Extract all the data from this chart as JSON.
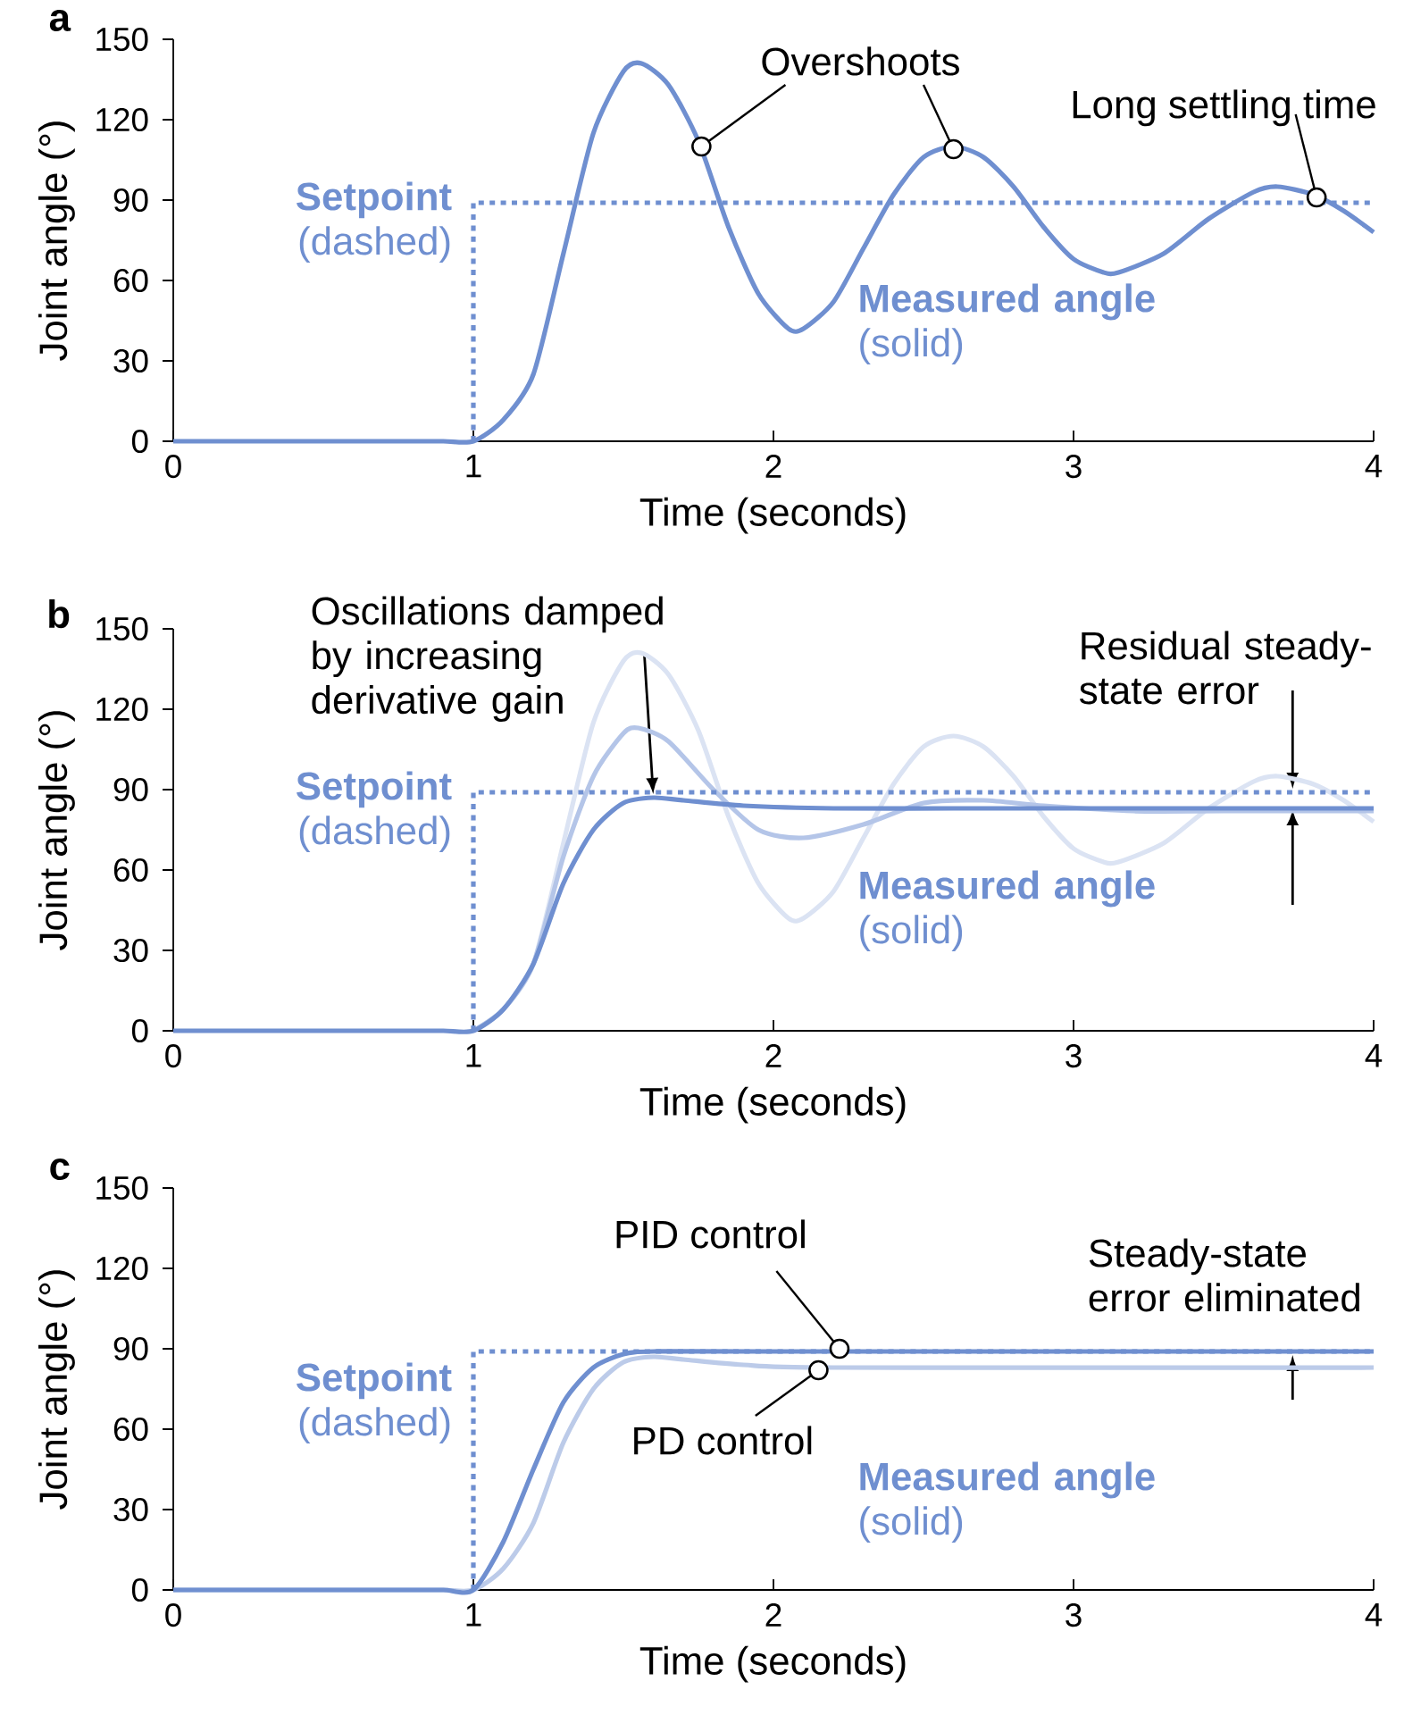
{
  "chart_data": [
    {
      "type": "line",
      "title": "a",
      "xlabel": "Time (seconds)",
      "ylabel": "Joint angle (°)",
      "xlim": [
        0,
        4
      ],
      "ylim": [
        0,
        150
      ],
      "xticks": [
        0,
        1,
        2,
        3,
        4
      ],
      "yticks": [
        0,
        30,
        60,
        90,
        120,
        150
      ],
      "series": [
        {
          "name": "**Measured angle** (solid)",
          "color": "#6f8fd0",
          "line_style": "solid",
          "x": [
            0,
            0.25,
            0.5,
            0.75,
            0.9,
            1,
            1.1,
            1.2,
            1.3,
            1.4,
            1.5,
            1.56,
            1.65,
            1.75,
            1.85,
            1.95,
            2.05,
            2.1,
            2.2,
            2.3,
            2.4,
            2.5,
            2.6,
            2.7,
            2.8,
            2.9,
            3.0,
            3.1,
            3.15,
            3.3,
            3.45,
            3.6,
            3.68,
            3.8,
            3.9,
            4.0
          ],
          "values": [
            0,
            0,
            0,
            0,
            0,
            0,
            8,
            25,
            70,
            115,
            138,
            141,
            133,
            112,
            80,
            55,
            42,
            42,
            52,
            72,
            92,
            106,
            110,
            106,
            95,
            80,
            68,
            63,
            63,
            70,
            83,
            93,
            95,
            92,
            86,
            78
          ]
        },
        {
          "name": "**Setpoint** (dashed)",
          "color": "#6f8fd0",
          "line_style": "dotted",
          "x": [
            1,
            1,
            4
          ],
          "values": [
            0,
            89,
            89
          ]
        },
        {
          "type": "scatter",
          "marker": "circle",
          "color": "#000000",
          "x": [
            1.76,
            2.6,
            3.81
          ],
          "values": [
            110,
            109,
            91
          ]
        }
      ],
      "annotations": [
        {
          "text": "Overshoots",
          "x": 1.76,
          "y": 110
        },
        {
          "text": "Long settling time",
          "x": 3.81,
          "y": 91
        }
      ]
    },
    {
      "type": "line",
      "title": "b",
      "xlabel": "Time (seconds)",
      "ylabel": "Joint angle (°)",
      "xlim": [
        0,
        4
      ],
      "ylim": [
        0,
        150
      ],
      "xticks": [
        0,
        1,
        2,
        3,
        4
      ],
      "yticks": [
        0,
        30,
        60,
        90,
        120,
        150
      ],
      "series": [
        {
          "color": "#dbe3f3",
          "line_style": "solid",
          "x": [
            1,
            1.1,
            1.2,
            1.3,
            1.4,
            1.5,
            1.56,
            1.65,
            1.75,
            1.85,
            1.95,
            2.05,
            2.1,
            2.2,
            2.3,
            2.4,
            2.5,
            2.6,
            2.7,
            2.8,
            2.9,
            3.0,
            3.1,
            3.15,
            3.3,
            3.45,
            3.6,
            3.68,
            3.8,
            3.9,
            4.0
          ],
          "values": [
            0,
            8,
            25,
            70,
            115,
            138,
            141,
            133,
            112,
            80,
            55,
            42,
            42,
            52,
            72,
            92,
            106,
            110,
            106,
            95,
            80,
            68,
            63,
            63,
            70,
            83,
            93,
            95,
            92,
            86,
            78
          ]
        },
        {
          "color": "#b4c5e8",
          "line_style": "solid",
          "x": [
            1,
            1.1,
            1.2,
            1.3,
            1.4,
            1.5,
            1.55,
            1.65,
            1.8,
            1.95,
            2.1,
            2.3,
            2.5,
            2.7,
            2.9,
            3.2,
            3.5,
            4.0
          ],
          "values": [
            0,
            8,
            25,
            65,
            95,
            111,
            113,
            108,
            90,
            75,
            72,
            77,
            85,
            86,
            84,
            82,
            82,
            82
          ]
        },
        {
          "name": "**Measured angle** (solid)",
          "color": "#6f8fd0",
          "line_style": "solid",
          "x": [
            0,
            0.25,
            0.5,
            0.75,
            0.9,
            1,
            1.1,
            1.2,
            1.3,
            1.4,
            1.5,
            1.6,
            1.7,
            1.9,
            2.2,
            2.6,
            3.0,
            4.0
          ],
          "values": [
            0,
            0,
            0,
            0,
            0,
            0,
            8,
            25,
            55,
            75,
            85,
            87,
            86,
            84,
            83,
            83,
            83,
            83
          ]
        },
        {
          "name": "**Setpoint** (dashed)",
          "color": "#6f8fd0",
          "line_style": "dotted",
          "x": [
            1,
            1,
            4
          ],
          "values": [
            0,
            89,
            89
          ]
        }
      ],
      "annotations": [
        {
          "text": "Oscillations damped by increasing derivative gain",
          "x": 1.6,
          "y": 87
        },
        {
          "text": "Residual steady-state error",
          "x": 3.73,
          "y": 89
        }
      ]
    },
    {
      "type": "line",
      "title": "c",
      "xlabel": "Time (seconds)",
      "ylabel": "Joint angle (°)",
      "xlim": [
        0,
        4
      ],
      "ylim": [
        0,
        150
      ],
      "xticks": [
        0,
        1,
        2,
        3,
        4
      ],
      "yticks": [
        0,
        30,
        60,
        90,
        120,
        150
      ],
      "series": [
        {
          "color": "#bccbe9",
          "line_style": "solid",
          "x": [
            0,
            0.25,
            0.5,
            0.75,
            0.9,
            1,
            1.1,
            1.2,
            1.3,
            1.4,
            1.5,
            1.6,
            1.7,
            1.9,
            2.2,
            4.0
          ],
          "values": [
            0,
            0,
            0,
            0,
            0,
            0,
            8,
            25,
            55,
            75,
            85,
            87,
            86,
            84,
            83,
            83
          ]
        },
        {
          "name": "**Measured angle** (solid)",
          "color": "#6f8fd0",
          "line_style": "solid",
          "x": [
            0,
            0.25,
            0.5,
            0.75,
            0.9,
            1,
            1.1,
            1.2,
            1.3,
            1.4,
            1.5,
            1.6,
            2.0,
            4.0
          ],
          "values": [
            0,
            0,
            0,
            0,
            0,
            0,
            18,
            45,
            70,
            83,
            88,
            89,
            89,
            89
          ]
        },
        {
          "name": "**Setpoint** (dashed)",
          "color": "#6f8fd0",
          "line_style": "dotted",
          "x": [
            1,
            1,
            4
          ],
          "values": [
            0,
            89,
            89
          ]
        },
        {
          "type": "scatter",
          "marker": "circle",
          "color": "#000000",
          "x": [
            2.22,
            2.15
          ],
          "values": [
            90,
            82
          ]
        }
      ],
      "annotations": [
        {
          "text": "PID control",
          "x": 2.22,
          "y": 90
        },
        {
          "text": "PD control",
          "x": 2.15,
          "y": 82
        },
        {
          "text": "Steady-state error eliminated",
          "x": 3.73,
          "y": 89
        }
      ]
    }
  ]
}
